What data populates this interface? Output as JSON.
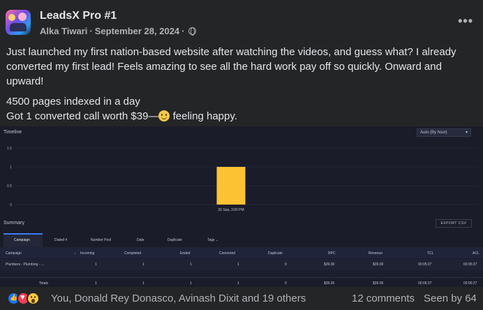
{
  "header": {
    "group_name": "LeadsX Pro #1",
    "author": "Alka Tiwari",
    "date": "September 28, 2024",
    "privacy_icon": "globe-icon",
    "menu_icon": "more-options-icon"
  },
  "post": {
    "paragraph1": "Just launched my first nation-based website after watching the videos, and guess what? I already converted my first lead! Feels amazing to see all the hard work pay off so quickly. Onward and upward!",
    "line1": "4500 pages indexed in a day",
    "line2_prefix": "Got 1 converted call worth $39—",
    "line2_suffix": " feeling happy."
  },
  "dashboard": {
    "timeline_title": "Timeline",
    "interval_select": "Auto (By hour)",
    "summary_title": "Summary",
    "export_label": "EXPORT CSV",
    "tabs": [
      "Campaign",
      "Dialed #",
      "Number Pool",
      "Date",
      "Duplicate",
      "Tags"
    ],
    "tags_caret": "⌄",
    "columns": [
      "Campaign",
      "Incoming",
      "Completed",
      "Ended",
      "Converted",
      "Duplicate",
      "RPC",
      "Revenue",
      "TCL",
      "ACL"
    ],
    "sort_indicator": "↓",
    "row": [
      "Plumbers - Plumbing - ...",
      "1",
      "1",
      "1",
      "1",
      "0",
      "$39.00",
      "$39.00",
      "00:05:27",
      "00:05:27"
    ],
    "totals": [
      "Totals",
      "1",
      "1",
      "1",
      "1",
      "0",
      "$39.00",
      "$39.00",
      "00:05:27",
      "00:05:27"
    ]
  },
  "chart_data": {
    "type": "bar",
    "categories": [
      "26 Sep, 3:00 PM"
    ],
    "values": [
      1
    ],
    "ylim": [
      0,
      1.5
    ],
    "yticks": [
      0,
      0.5,
      1,
      1.5
    ],
    "bar_color": "#fcc233",
    "grid": true
  },
  "footer": {
    "reactions": [
      "like-icon",
      "love-icon",
      "wow-icon"
    ],
    "reactors_text": "You, Donald Rey Donasco, Avinash Dixit and 19 others",
    "comments_text": "12 comments",
    "seen_text": "Seen by 64"
  }
}
